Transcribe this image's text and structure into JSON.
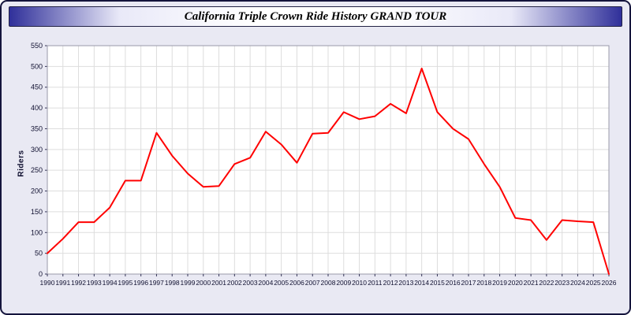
{
  "window": {
    "background": "#e9e9f3",
    "border_color": "#14143c"
  },
  "header": {
    "gradient_edge": "#30309a",
    "gradient_center": "#ffffff"
  },
  "chart_data": {
    "type": "line",
    "title": "California Triple Crown Ride History GRAND TOUR",
    "xlabel": "",
    "ylabel": "Riders",
    "ylim": [
      0,
      550
    ],
    "ytick_step": 50,
    "grid": true,
    "legend": "none",
    "line_color": "#ff0000",
    "plot_background": "#ffffff",
    "grid_color": "#dddddd",
    "axis_text_color": "#101030",
    "x": [
      1990,
      1991,
      1992,
      1993,
      1994,
      1995,
      1996,
      1997,
      1998,
      1999,
      2000,
      2001,
      2002,
      2003,
      2004,
      2005,
      2006,
      2007,
      2008,
      2009,
      2010,
      2011,
      2012,
      2013,
      2014,
      2015,
      2016,
      2017,
      2018,
      2019,
      2020,
      2021,
      2022,
      2023,
      2024,
      2025,
      2026
    ],
    "values": [
      50,
      85,
      125,
      125,
      160,
      225,
      225,
      340,
      285,
      242,
      210,
      212,
      265,
      280,
      343,
      312,
      268,
      338,
      340,
      390,
      373,
      380,
      410,
      387,
      495,
      390,
      350,
      325,
      265,
      210,
      135,
      130,
      82,
      130,
      127,
      125,
      0
    ]
  }
}
